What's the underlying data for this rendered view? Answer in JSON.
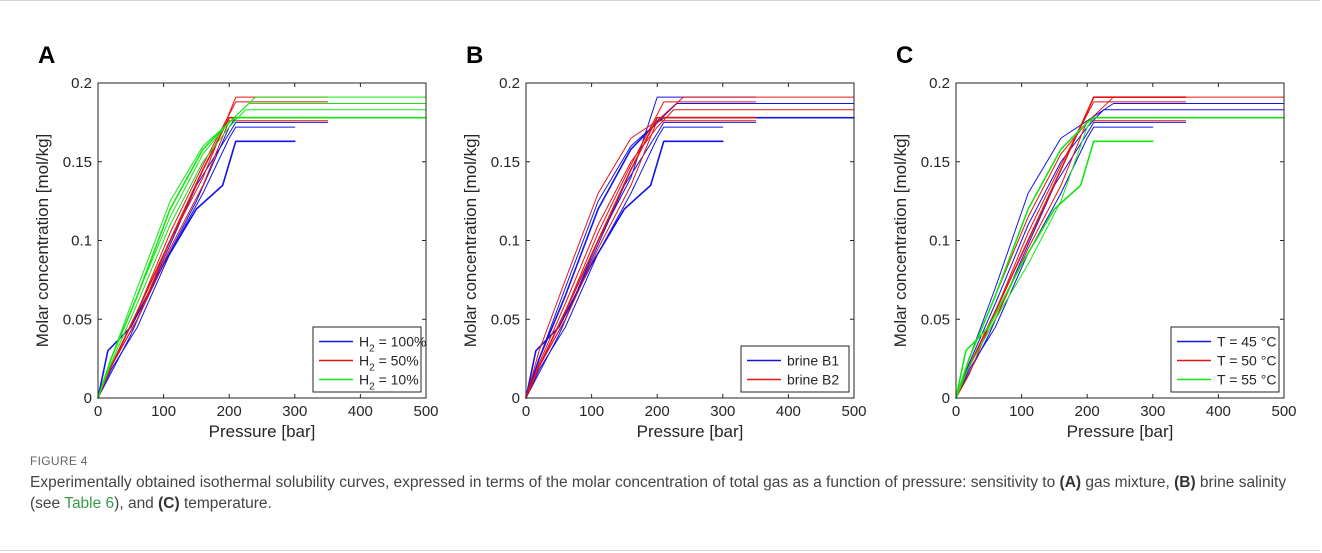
{
  "chart_data": [
    {
      "type": "line",
      "panel_label": "A",
      "xlabel": "Pressure [bar]",
      "ylabel": "Molar concentration [mol/kg]",
      "xlim": [
        0,
        500
      ],
      "ylim": [
        0,
        0.2
      ],
      "xticks": [
        0,
        100,
        200,
        300,
        400,
        500
      ],
      "yticks": [
        0,
        0.05,
        0.1,
        0.15,
        0.2
      ],
      "ytick_labels": [
        "0",
        "0.05",
        "0.1",
        "0.15",
        "0.2"
      ],
      "grid": false,
      "legend_position": "bottom-right",
      "legend": [
        {
          "label_main": "H",
          "label_sub": "2",
          "label_rest": " = 100%",
          "color": "#1414e6"
        },
        {
          "label_main": "H",
          "label_sub": "2",
          "label_rest": " = 50%",
          "color": "#e61414"
        },
        {
          "label_main": "H",
          "label_sub": "2",
          "label_rest": " = 10%",
          "color": "#14e614"
        }
      ],
      "series": [
        {
          "color": "#1414e6",
          "width": 1.6,
          "x": [
            0,
            15,
            50,
            100,
            150,
            190,
            210,
            300
          ],
          "y": [
            0,
            0.03,
            0.045,
            0.085,
            0.12,
            0.135,
            0.163,
            0.163
          ]
        },
        {
          "color": "#1414e6",
          "width": 1.0,
          "x": [
            0,
            20,
            60,
            110,
            160,
            200,
            210,
            300
          ],
          "y": [
            0,
            0.018,
            0.045,
            0.092,
            0.13,
            0.165,
            0.172,
            0.172
          ]
        },
        {
          "color": "#1414e6",
          "width": 1.0,
          "x": [
            0,
            10,
            50,
            100,
            150,
            200,
            210,
            350
          ],
          "y": [
            0,
            0.008,
            0.04,
            0.088,
            0.135,
            0.168,
            0.175,
            0.175
          ]
        },
        {
          "color": "#1414e6",
          "width": 1.0,
          "x": [
            0,
            20,
            60,
            100,
            150,
            200,
            210,
            350
          ],
          "y": [
            0,
            0.02,
            0.05,
            0.085,
            0.125,
            0.172,
            0.178,
            0.178
          ]
        },
        {
          "color": "#e61414",
          "width": 1.0,
          "x": [
            0,
            20,
            60,
            110,
            160,
            210,
            350
          ],
          "y": [
            0,
            0.02,
            0.05,
            0.1,
            0.14,
            0.191,
            0.191
          ]
        },
        {
          "color": "#e61414",
          "width": 1.0,
          "x": [
            0,
            15,
            60,
            110,
            160,
            210,
            350
          ],
          "y": [
            0,
            0.015,
            0.055,
            0.105,
            0.148,
            0.188,
            0.188
          ]
        },
        {
          "color": "#e61414",
          "width": 1.6,
          "x": [
            0,
            20,
            60,
            110,
            160,
            200,
            350
          ],
          "y": [
            0,
            0.02,
            0.055,
            0.1,
            0.145,
            0.178,
            0.178
          ]
        },
        {
          "color": "#e61414",
          "width": 1.0,
          "x": [
            0,
            20,
            60,
            110,
            160,
            200,
            350
          ],
          "y": [
            0,
            0.02,
            0.05,
            0.095,
            0.135,
            0.176,
            0.176
          ]
        },
        {
          "color": "#14e614",
          "width": 1.0,
          "x": [
            0,
            20,
            60,
            110,
            160,
            200,
            240,
            500
          ],
          "y": [
            0,
            0.025,
            0.065,
            0.115,
            0.155,
            0.175,
            0.191,
            0.191
          ]
        },
        {
          "color": "#14e614",
          "width": 1.0,
          "x": [
            0,
            20,
            60,
            110,
            160,
            200,
            230,
            500
          ],
          "y": [
            0,
            0.025,
            0.07,
            0.125,
            0.16,
            0.175,
            0.187,
            0.187
          ]
        },
        {
          "color": "#14e614",
          "width": 1.0,
          "x": [
            0,
            20,
            60,
            110,
            160,
            200,
            225,
            500
          ],
          "y": [
            0,
            0.022,
            0.06,
            0.11,
            0.15,
            0.172,
            0.183,
            0.183
          ]
        },
        {
          "color": "#14e614",
          "width": 1.6,
          "x": [
            0,
            20,
            60,
            110,
            160,
            200,
            210,
            500
          ],
          "y": [
            0,
            0.025,
            0.065,
            0.12,
            0.158,
            0.175,
            0.178,
            0.178
          ]
        }
      ]
    },
    {
      "type": "line",
      "panel_label": "B",
      "xlabel": "Pressure [bar]",
      "ylabel": "Molar concentration [mol/kg]",
      "xlim": [
        0,
        500
      ],
      "ylim": [
        0,
        0.2
      ],
      "xticks": [
        0,
        100,
        200,
        300,
        400,
        500
      ],
      "yticks": [
        0,
        0.05,
        0.1,
        0.15,
        0.2
      ],
      "ytick_labels": [
        "0",
        "0.05",
        "0.1",
        "0.15",
        "0.2"
      ],
      "grid": false,
      "legend_position": "bottom-right",
      "legend": [
        {
          "label_main": "brine B1",
          "label_sub": "",
          "label_rest": "",
          "color": "#1414e6"
        },
        {
          "label_main": "brine B2",
          "label_sub": "",
          "label_rest": "",
          "color": "#e61414"
        }
      ],
      "series": [
        {
          "color": "#1414e6",
          "width": 1.6,
          "x": [
            0,
            15,
            50,
            100,
            150,
            190,
            210,
            300
          ],
          "y": [
            0,
            0.03,
            0.045,
            0.085,
            0.12,
            0.135,
            0.163,
            0.163
          ]
        },
        {
          "color": "#1414e6",
          "width": 1.0,
          "x": [
            0,
            20,
            60,
            110,
            160,
            200,
            210,
            300
          ],
          "y": [
            0,
            0.018,
            0.045,
            0.092,
            0.13,
            0.165,
            0.172,
            0.172
          ]
        },
        {
          "color": "#1414e6",
          "width": 1.0,
          "x": [
            0,
            10,
            50,
            100,
            150,
            200,
            210,
            350
          ],
          "y": [
            0,
            0.008,
            0.04,
            0.088,
            0.135,
            0.168,
            0.175,
            0.175
          ]
        },
        {
          "color": "#1414e6",
          "width": 1.0,
          "x": [
            0,
            20,
            60,
            110,
            160,
            200,
            210,
            350
          ],
          "y": [
            0,
            0.02,
            0.05,
            0.1,
            0.14,
            0.191,
            0.191,
            0.191
          ]
        },
        {
          "color": "#1414e6",
          "width": 1.0,
          "x": [
            0,
            20,
            60,
            110,
            160,
            200,
            230,
            500
          ],
          "y": [
            0,
            0.025,
            0.07,
            0.125,
            0.16,
            0.175,
            0.187,
            0.187
          ]
        },
        {
          "color": "#1414e6",
          "width": 1.6,
          "x": [
            0,
            20,
            60,
            110,
            160,
            200,
            210,
            500
          ],
          "y": [
            0,
            0.025,
            0.065,
            0.12,
            0.158,
            0.175,
            0.178,
            0.178
          ]
        },
        {
          "color": "#e61414",
          "width": 1.0,
          "x": [
            0,
            20,
            60,
            110,
            160,
            200,
            240,
            500
          ],
          "y": [
            0,
            0.03,
            0.075,
            0.13,
            0.165,
            0.176,
            0.191,
            0.191
          ]
        },
        {
          "color": "#e61414",
          "width": 1.0,
          "x": [
            0,
            20,
            60,
            110,
            160,
            210,
            350
          ],
          "y": [
            0,
            0.02,
            0.055,
            0.105,
            0.148,
            0.188,
            0.188
          ]
        },
        {
          "color": "#e61414",
          "width": 1.6,
          "x": [
            0,
            20,
            60,
            110,
            160,
            200,
            350
          ],
          "y": [
            0,
            0.02,
            0.055,
            0.1,
            0.145,
            0.178,
            0.178
          ]
        },
        {
          "color": "#e61414",
          "width": 1.0,
          "x": [
            0,
            20,
            60,
            110,
            160,
            200,
            225,
            500
          ],
          "y": [
            0,
            0.022,
            0.06,
            0.11,
            0.15,
            0.172,
            0.183,
            0.183
          ]
        },
        {
          "color": "#e61414",
          "width": 1.0,
          "x": [
            0,
            20,
            60,
            110,
            160,
            200,
            350
          ],
          "y": [
            0,
            0.02,
            0.05,
            0.095,
            0.135,
            0.176,
            0.176
          ]
        }
      ]
    },
    {
      "type": "line",
      "panel_label": "C",
      "xlabel": "Pressure [bar]",
      "ylabel": "Molar concentration [mol/kg]",
      "xlim": [
        0,
        500
      ],
      "ylim": [
        0,
        0.2
      ],
      "xticks": [
        0,
        100,
        200,
        300,
        400,
        500
      ],
      "yticks": [
        0,
        0.05,
        0.1,
        0.15,
        0.2
      ],
      "ytick_labels": [
        "0",
        "0.05",
        "0.1",
        "0.15",
        "0.2"
      ],
      "grid": false,
      "legend_position": "bottom-right",
      "legend": [
        {
          "label_main": "T = 45 °C",
          "label_sub": "",
          "label_rest": "",
          "color": "#1414e6"
        },
        {
          "label_main": "T = 50 °C",
          "label_sub": "",
          "label_rest": "",
          "color": "#e61414"
        },
        {
          "label_main": "T = 55 °C",
          "label_sub": "",
          "label_rest": "",
          "color": "#14e614"
        }
      ],
      "series": [
        {
          "color": "#1414e6",
          "width": 1.0,
          "x": [
            0,
            20,
            60,
            110,
            160,
            200,
            240,
            500
          ],
          "y": [
            0,
            0.025,
            0.07,
            0.13,
            0.165,
            0.176,
            0.187,
            0.187
          ]
        },
        {
          "color": "#1414e6",
          "width": 1.0,
          "x": [
            0,
            20,
            60,
            110,
            160,
            200,
            225,
            500
          ],
          "y": [
            0,
            0.022,
            0.06,
            0.11,
            0.15,
            0.172,
            0.183,
            0.183
          ]
        },
        {
          "color": "#1414e6",
          "width": 1.0,
          "x": [
            0,
            10,
            50,
            100,
            150,
            200,
            210,
            350
          ],
          "y": [
            0,
            0.008,
            0.04,
            0.088,
            0.135,
            0.168,
            0.175,
            0.175
          ]
        },
        {
          "color": "#1414e6",
          "width": 1.0,
          "x": [
            0,
            20,
            60,
            110,
            160,
            200,
            210,
            300
          ],
          "y": [
            0,
            0.018,
            0.045,
            0.092,
            0.13,
            0.165,
            0.172,
            0.172
          ]
        },
        {
          "color": "#e61414",
          "width": 1.6,
          "x": [
            0,
            20,
            60,
            110,
            160,
            210,
            350
          ],
          "y": [
            0,
            0.02,
            0.055,
            0.1,
            0.145,
            0.191,
            0.191
          ]
        },
        {
          "color": "#e61414",
          "width": 1.0,
          "x": [
            0,
            20,
            60,
            110,
            160,
            210,
            350
          ],
          "y": [
            0,
            0.015,
            0.055,
            0.105,
            0.148,
            0.188,
            0.188
          ]
        },
        {
          "color": "#e61414",
          "width": 1.0,
          "x": [
            0,
            20,
            60,
            110,
            160,
            200,
            350
          ],
          "y": [
            0,
            0.02,
            0.05,
            0.095,
            0.135,
            0.176,
            0.176
          ]
        },
        {
          "color": "#e61414",
          "width": 1.0,
          "x": [
            0,
            20,
            60,
            110,
            160,
            200,
            240,
            500
          ],
          "y": [
            0,
            0.025,
            0.065,
            0.115,
            0.155,
            0.175,
            0.191,
            0.191
          ]
        },
        {
          "color": "#14e614",
          "width": 1.6,
          "x": [
            0,
            15,
            50,
            100,
            150,
            190,
            210,
            300
          ],
          "y": [
            0,
            0.03,
            0.045,
            0.085,
            0.12,
            0.135,
            0.163,
            0.163
          ]
        },
        {
          "color": "#14e614",
          "width": 1.0,
          "x": [
            0,
            20,
            60,
            110,
            160,
            200,
            210,
            350
          ],
          "y": [
            0,
            0.02,
            0.05,
            0.085,
            0.125,
            0.172,
            0.178,
            0.178
          ]
        },
        {
          "color": "#14e614",
          "width": 1.6,
          "x": [
            0,
            20,
            60,
            110,
            160,
            200,
            210,
            500
          ],
          "y": [
            0,
            0.025,
            0.065,
            0.12,
            0.158,
            0.175,
            0.178,
            0.178
          ]
        }
      ]
    }
  ],
  "caption": {
    "figure_label": "FIGURE 4",
    "text_before_a": "Experimentally obtained isothermal solubility curves, expressed in terms of the molar concentration of total gas as a function of pressure: sensitivity to ",
    "a_marker": "(A)",
    "text_after_a": " gas mixture, ",
    "b_marker": "(B)",
    "text_after_b": " brine salinity (see ",
    "table_link": "Table 6",
    "text_after_link": "), and ",
    "c_marker": "(C)",
    "text_after_c": " temperature."
  }
}
